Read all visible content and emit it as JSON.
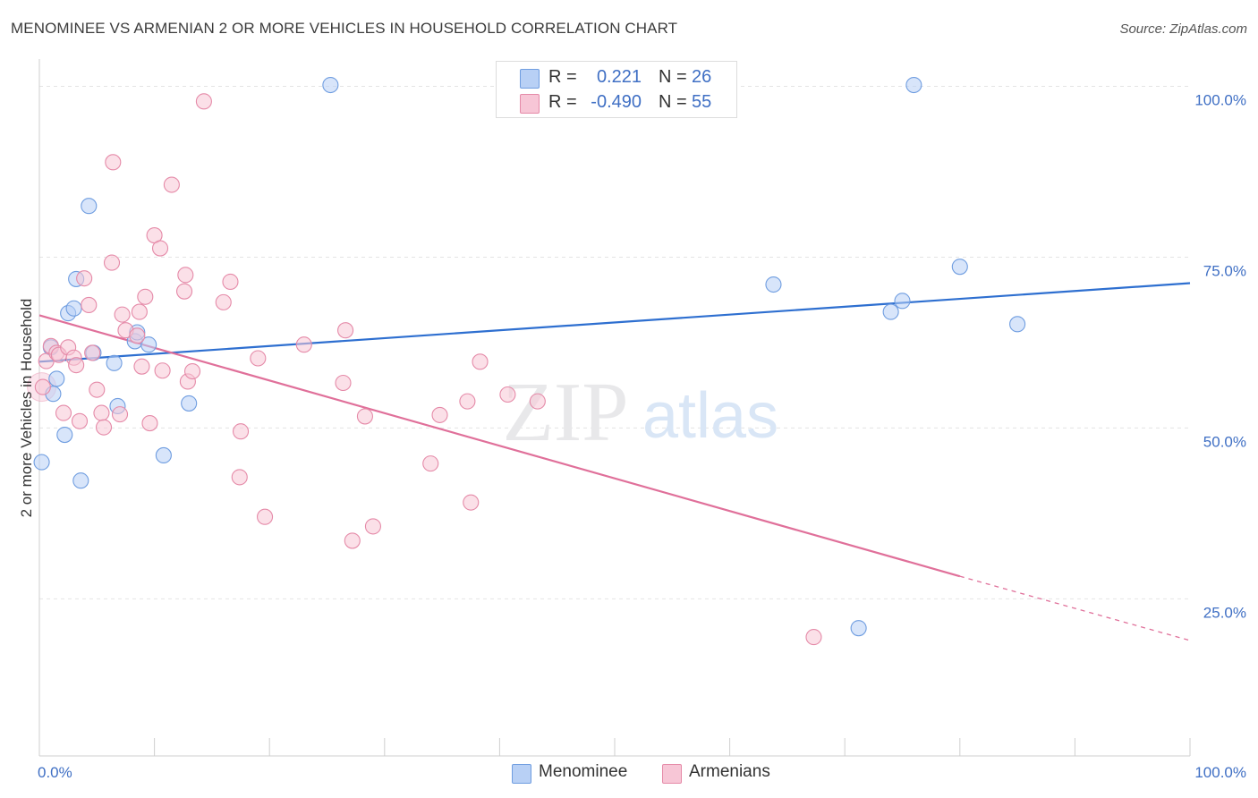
{
  "title": "MENOMINEE VS ARMENIAN 2 OR MORE VEHICLES IN HOUSEHOLD CORRELATION CHART",
  "source": "Source: ZipAtlas.com",
  "watermark": {
    "zip": "ZIP",
    "atlas": "atlas"
  },
  "legend": {
    "rows": [
      {
        "r_label": "R =",
        "r_value": "0.221",
        "n_label": "N =",
        "n_value": "26",
        "color": "#b8d0f5",
        "border": "#6f9de0"
      },
      {
        "r_label": "R =",
        "r_value": "-0.490",
        "n_label": "N =",
        "n_value": "55",
        "color": "#f7c6d6",
        "border": "#e58aa8"
      }
    ]
  },
  "chart_data": {
    "type": "scatter",
    "title": "MENOMINEE VS ARMENIAN 2 OR MORE VEHICLES IN HOUSEHOLD CORRELATION CHART",
    "xlabel": "",
    "ylabel": "2 or more Vehicles in Household",
    "xlim": [
      0,
      100
    ],
    "ylim": [
      2,
      104
    ],
    "x_tick_labels": [
      "0.0%",
      "100.0%"
    ],
    "y_ticks": [
      25,
      50,
      75,
      100
    ],
    "y_tick_labels": [
      "25.0%",
      "50.0%",
      "75.0%",
      "100.0%"
    ],
    "grid": true,
    "legend_position": "top-center",
    "series": [
      {
        "name": "Menominee",
        "color": "#b8d0f5",
        "stroke": "#6f9de0",
        "line_color": "#2e6fd0",
        "trend": {
          "x": [
            0,
            100
          ],
          "y": [
            59.7,
            71.2
          ]
        },
        "points": [
          [
            0.2,
            45.0
          ],
          [
            1.0,
            61.8
          ],
          [
            1.2,
            55.0
          ],
          [
            1.5,
            57.2
          ],
          [
            2.2,
            49.0
          ],
          [
            2.5,
            66.8
          ],
          [
            3.0,
            67.5
          ],
          [
            3.2,
            71.8
          ],
          [
            3.6,
            42.3
          ],
          [
            4.3,
            82.5
          ],
          [
            4.7,
            61.0
          ],
          [
            6.5,
            59.5
          ],
          [
            6.8,
            53.2
          ],
          [
            8.3,
            62.7
          ],
          [
            8.5,
            64.0
          ],
          [
            9.5,
            62.2
          ],
          [
            10.8,
            46.0
          ],
          [
            13.0,
            53.6
          ],
          [
            25.3,
            100.2
          ],
          [
            63.8,
            71.0
          ],
          [
            71.2,
            20.7
          ],
          [
            74.0,
            67.0
          ],
          [
            75.0,
            68.6
          ],
          [
            76.0,
            100.2
          ],
          [
            80.0,
            73.6
          ],
          [
            85.0,
            65.2
          ]
        ]
      },
      {
        "name": "Armenians",
        "color": "#f7c6d6",
        "stroke": "#e58aa8",
        "line_color": "#e0709a",
        "trend": {
          "x": [
            0,
            80
          ],
          "y": [
            66.5,
            28.3
          ]
        },
        "trend_dashed": {
          "x": [
            80,
            100
          ],
          "y": [
            28.3,
            18.9
          ]
        },
        "points": [
          [
            0.3,
            56.0
          ],
          [
            0.6,
            59.8
          ],
          [
            1.0,
            62.0
          ],
          [
            1.5,
            61.0
          ],
          [
            1.7,
            60.7
          ],
          [
            2.1,
            52.2
          ],
          [
            2.5,
            61.8
          ],
          [
            3.0,
            60.3
          ],
          [
            3.2,
            59.2
          ],
          [
            3.5,
            51.0
          ],
          [
            3.9,
            71.9
          ],
          [
            4.3,
            68.0
          ],
          [
            4.6,
            61.0
          ],
          [
            5.0,
            55.6
          ],
          [
            5.4,
            52.2
          ],
          [
            5.6,
            50.1
          ],
          [
            6.3,
            74.2
          ],
          [
            6.4,
            88.9
          ],
          [
            7.0,
            52.0
          ],
          [
            7.2,
            66.6
          ],
          [
            7.5,
            64.3
          ],
          [
            8.5,
            63.5
          ],
          [
            8.7,
            67.0
          ],
          [
            8.9,
            59.0
          ],
          [
            9.2,
            69.2
          ],
          [
            9.6,
            50.7
          ],
          [
            10.0,
            78.2
          ],
          [
            10.5,
            76.3
          ],
          [
            10.7,
            58.4
          ],
          [
            11.5,
            85.6
          ],
          [
            12.6,
            70.0
          ],
          [
            12.7,
            72.4
          ],
          [
            12.9,
            56.8
          ],
          [
            13.3,
            58.3
          ],
          [
            14.3,
            97.8
          ],
          [
            16.0,
            68.4
          ],
          [
            16.6,
            71.4
          ],
          [
            17.4,
            42.8
          ],
          [
            17.5,
            49.5
          ],
          [
            19.0,
            60.2
          ],
          [
            19.6,
            37.0
          ],
          [
            23.0,
            62.2
          ],
          [
            26.4,
            56.6
          ],
          [
            26.6,
            64.3
          ],
          [
            27.2,
            33.5
          ],
          [
            28.3,
            51.7
          ],
          [
            29.0,
            35.6
          ],
          [
            34.0,
            44.8
          ],
          [
            34.8,
            51.9
          ],
          [
            37.2,
            53.9
          ],
          [
            37.5,
            39.1
          ],
          [
            38.3,
            59.7
          ],
          [
            40.7,
            54.9
          ],
          [
            43.3,
            53.9
          ],
          [
            67.3,
            19.4
          ]
        ]
      }
    ]
  }
}
